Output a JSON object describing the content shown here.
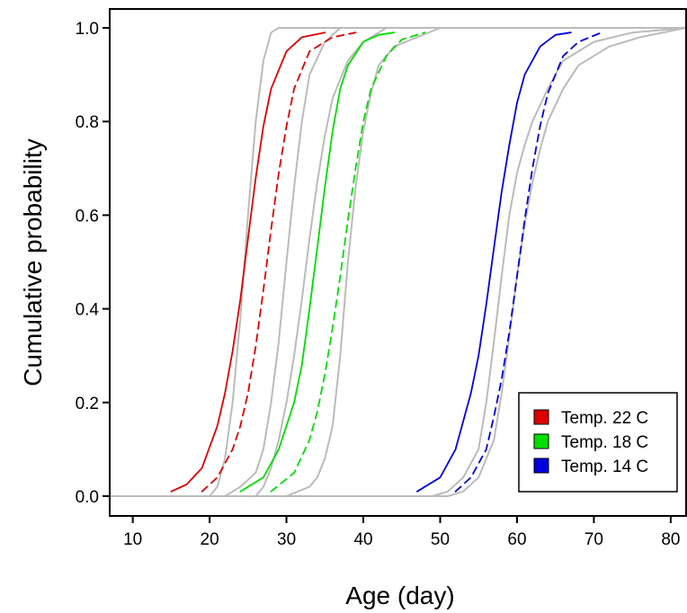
{
  "chart_data": {
    "type": "line",
    "xlabel": "Age (day)",
    "ylabel": "Cumulative probability",
    "xlim": [
      7,
      82
    ],
    "ylim": [
      0,
      1
    ],
    "x_ticks": [
      10,
      20,
      30,
      40,
      50,
      60,
      70,
      80
    ],
    "y_ticks": [
      "0.0",
      "0.2",
      "0.4",
      "0.6",
      "0.8",
      "1.0"
    ],
    "grid": false,
    "legend_position": "bottom-right",
    "legend": [
      {
        "label": "Temp. 22 C",
        "color": "#dd0000"
      },
      {
        "label": "Temp. 18 C",
        "color": "#00dd00"
      },
      {
        "label": "Temp. 14 C",
        "color": "#0000dd"
      }
    ],
    "series": [
      {
        "group": 0,
        "style": "solid",
        "color": "#dd0000",
        "x": [
          15,
          17,
          19,
          21,
          22,
          23,
          24,
          25,
          26,
          27,
          28,
          30,
          32,
          35
        ],
        "y": [
          0.01,
          0.025,
          0.06,
          0.15,
          0.22,
          0.31,
          0.42,
          0.55,
          0.68,
          0.79,
          0.87,
          0.95,
          0.98,
          0.99
        ]
      },
      {
        "group": 0,
        "style": "dashed",
        "color": "#dd0000",
        "x": [
          19,
          21,
          23,
          24,
          25,
          26,
          27,
          28,
          29,
          30,
          31,
          33,
          36,
          39
        ],
        "y": [
          0.01,
          0.04,
          0.1,
          0.15,
          0.22,
          0.32,
          0.44,
          0.57,
          0.69,
          0.79,
          0.87,
          0.95,
          0.98,
          0.99
        ]
      },
      {
        "group": 1,
        "style": "solid",
        "color": "#00dd00",
        "x": [
          24,
          27,
          29,
          31,
          32,
          33,
          34,
          35,
          36,
          37,
          38,
          40,
          42,
          44
        ],
        "y": [
          0.01,
          0.04,
          0.1,
          0.2,
          0.28,
          0.4,
          0.53,
          0.66,
          0.78,
          0.87,
          0.92,
          0.97,
          0.985,
          0.99
        ]
      },
      {
        "group": 1,
        "style": "dashed",
        "color": "#00dd00",
        "x": [
          28,
          31,
          33,
          34,
          35,
          36,
          37,
          38,
          39,
          40,
          41,
          43,
          45,
          48
        ],
        "y": [
          0.01,
          0.05,
          0.12,
          0.18,
          0.26,
          0.36,
          0.47,
          0.59,
          0.7,
          0.8,
          0.87,
          0.94,
          0.975,
          0.99
        ]
      },
      {
        "group": 2,
        "style": "solid",
        "color": "#0000dd",
        "x": [
          47,
          50,
          52,
          54,
          55,
          56,
          57,
          58,
          59,
          60,
          61,
          63,
          65,
          67
        ],
        "y": [
          0.01,
          0.04,
          0.1,
          0.22,
          0.3,
          0.41,
          0.53,
          0.65,
          0.75,
          0.84,
          0.9,
          0.96,
          0.985,
          0.99
        ]
      },
      {
        "group": 2,
        "style": "dashed",
        "color": "#0000dd",
        "x": [
          52,
          54,
          56,
          57,
          58,
          59,
          60,
          61,
          62,
          63,
          64,
          66,
          68,
          71
        ],
        "y": [
          0.01,
          0.04,
          0.1,
          0.17,
          0.25,
          0.35,
          0.47,
          0.59,
          0.7,
          0.79,
          0.86,
          0.94,
          0.97,
          0.99
        ]
      },
      {
        "group": 3,
        "style": "solid",
        "color": "#bbbbbb",
        "x": [
          7,
          20,
          21,
          22,
          23,
          24,
          25,
          26,
          27,
          28,
          29,
          31,
          82
        ],
        "y": [
          0,
          0,
          0.02,
          0.08,
          0.2,
          0.38,
          0.6,
          0.8,
          0.93,
          0.99,
          1,
          1,
          1
        ]
      },
      {
        "group": 3,
        "style": "solid",
        "color": "#bbbbbb",
        "x": [
          7,
          22,
          24,
          26,
          27,
          28,
          29,
          30,
          31,
          32,
          33,
          35,
          37,
          82
        ],
        "y": [
          0,
          0,
          0.02,
          0.05,
          0.1,
          0.2,
          0.33,
          0.5,
          0.66,
          0.8,
          0.9,
          0.97,
          1,
          1
        ]
      },
      {
        "group": 3,
        "style": "solid",
        "color": "#bbbbbb",
        "x": [
          7,
          26,
          27,
          28,
          29,
          30,
          31,
          32,
          33,
          34,
          35,
          36,
          38,
          40,
          43,
          82
        ],
        "y": [
          0,
          0,
          0.02,
          0.06,
          0.12,
          0.2,
          0.3,
          0.42,
          0.55,
          0.67,
          0.77,
          0.85,
          0.93,
          0.97,
          1,
          1
        ]
      },
      {
        "group": 3,
        "style": "solid",
        "color": "#bbbbbb",
        "x": [
          7,
          30,
          33,
          34,
          35,
          36,
          37,
          38,
          39,
          40,
          41,
          42,
          44,
          47,
          50,
          82
        ],
        "y": [
          0,
          0,
          0.02,
          0.04,
          0.08,
          0.15,
          0.3,
          0.5,
          0.66,
          0.78,
          0.86,
          0.92,
          0.96,
          0.98,
          1,
          1
        ]
      },
      {
        "group": 3,
        "style": "solid",
        "color": "#bbbbbb",
        "x": [
          7,
          49,
          51,
          53,
          55,
          56,
          57,
          58,
          59,
          60,
          61,
          62,
          64,
          66,
          70,
          75,
          82
        ],
        "y": [
          0,
          0,
          0.01,
          0.04,
          0.1,
          0.2,
          0.33,
          0.47,
          0.6,
          0.69,
          0.75,
          0.8,
          0.87,
          0.93,
          0.97,
          0.99,
          1
        ]
      },
      {
        "group": 3,
        "style": "solid",
        "color": "#bbbbbb",
        "x": [
          7,
          51,
          53,
          55,
          57,
          58,
          59,
          60,
          61,
          62,
          63,
          64,
          66,
          68,
          72,
          76,
          79,
          82
        ],
        "y": [
          0,
          0,
          0.01,
          0.04,
          0.12,
          0.22,
          0.34,
          0.47,
          0.58,
          0.67,
          0.74,
          0.8,
          0.87,
          0.92,
          0.96,
          0.98,
          0.99,
          1
        ]
      }
    ]
  }
}
